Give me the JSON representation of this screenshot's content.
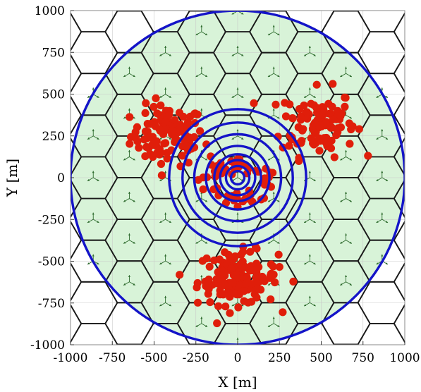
{
  "chart_data": {
    "type": "scatter",
    "title": "",
    "xlabel": "X [m]",
    "ylabel": "Y [m]",
    "xlim": [
      -1000,
      1000
    ],
    "ylim": [
      -1000,
      1000
    ],
    "xticks": [
      -1000,
      -750,
      -500,
      -250,
      0,
      250,
      500,
      750,
      1000
    ],
    "yticks": [
      -1000,
      -750,
      -500,
      -250,
      0,
      250,
      500,
      750,
      1000
    ],
    "xtick_labels": [
      "-1000",
      "-750",
      "-500",
      "-250",
      "0",
      "250",
      "500",
      "750",
      "1000"
    ],
    "ytick_labels": [
      "-1000",
      "-750",
      "-500",
      "-250",
      "0",
      "250",
      "500",
      "750",
      "1000"
    ],
    "grid": true,
    "colors": {
      "coverage_fill": "#d8f3d8",
      "hexagon_edge": "#1a1a1a",
      "circles": "#1414c8",
      "users": "#e01e0a",
      "sector_arrows": "#2e6b2e"
    },
    "hexagon_grid": {
      "cell_radius_m": 144,
      "orientation": "flat-top",
      "sectors_per_cell": 3
    },
    "coverage_circle_radius_m": 1000,
    "concentric_circles_radius_m": [
      40,
      70,
      105,
      140,
      190,
      260,
      330,
      410
    ],
    "user_clusters": [
      {
        "center": [
          -420,
          250
        ],
        "spread": [
          110,
          90
        ],
        "count": 105
      },
      {
        "center": [
          480,
          330
        ],
        "spread": [
          110,
          100
        ],
        "count": 110
      },
      {
        "center": [
          0,
          -600
        ],
        "spread": [
          120,
          80
        ],
        "count": 135
      },
      {
        "center": [
          0,
          10
        ],
        "spread": [
          170,
          100
        ],
        "count": 60
      }
    ]
  }
}
